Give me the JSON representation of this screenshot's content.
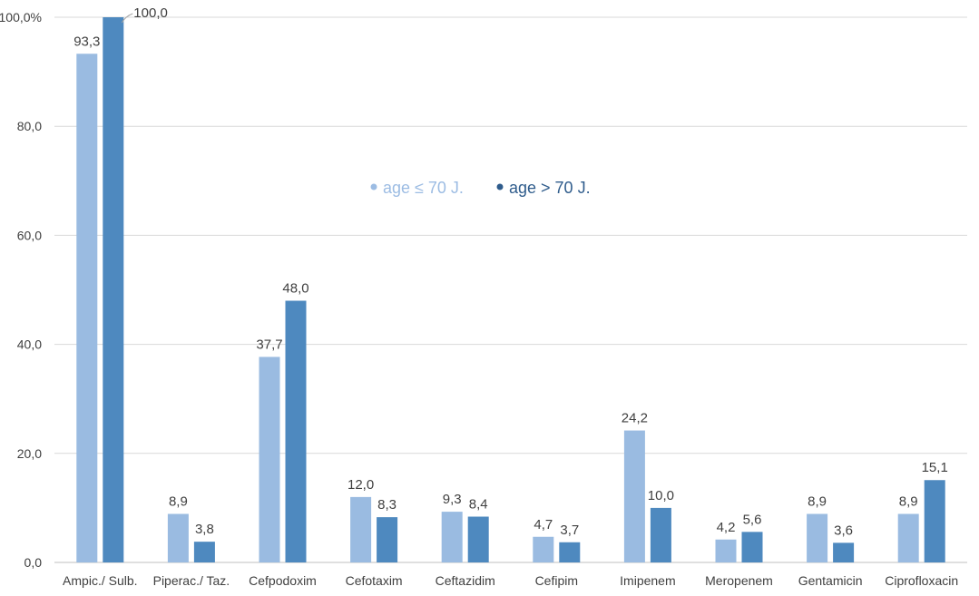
{
  "chart_data": {
    "type": "bar",
    "categories": [
      "Ampic./ Sulb.",
      "Piperac./ Taz.",
      "Cefpodoxim",
      "Cefotaxim",
      "Ceftazidim",
      "Cefipim",
      "Imipenem",
      "Meropenem",
      "Gentamicin",
      "Ciprofloxacin"
    ],
    "series": [
      {
        "name": "age ≤ 70 J.",
        "color": "#9abbe1",
        "legend_color": "#9cbce3",
        "values": [
          93.3,
          8.9,
          37.7,
          12.0,
          9.3,
          4.7,
          24.2,
          4.2,
          8.9,
          8.9
        ],
        "labels": [
          "93,3",
          "8,9",
          "37,7",
          "12,0",
          "9,3",
          "4,7",
          "24,2",
          "4,2",
          "8,9",
          "8,9"
        ]
      },
      {
        "name": "age > 70 J.",
        "color": "#4e89bf",
        "legend_color": "#2f5c8c",
        "values": [
          100.0,
          3.8,
          48.0,
          8.3,
          8.4,
          3.7,
          10.0,
          5.6,
          3.6,
          15.1
        ],
        "labels": [
          "100,0",
          "3,8",
          "48,0",
          "8,3",
          "8,4",
          "3,7",
          "10,0",
          "5,6",
          "3,6",
          "15,1"
        ]
      }
    ],
    "y_ticks": [
      "0,0",
      "20,0",
      "40,0",
      "60,0",
      "80,0",
      "100,0%"
    ],
    "ylim": [
      0,
      100
    ],
    "ystep": 20,
    "grid": true,
    "gridline_color": "#d9d9d9",
    "legend_position": "inside-center",
    "title": "",
    "xlabel": "",
    "ylabel": ""
  }
}
